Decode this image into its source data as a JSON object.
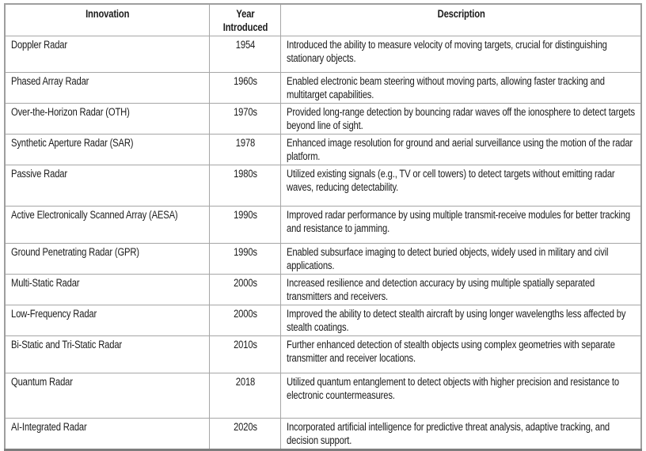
{
  "table": {
    "title_semantic": "Radar innovations timeline table",
    "header": {
      "innovation": "Innovation",
      "year_line1": "Year",
      "year_line2": "Introduced",
      "description": "Description"
    },
    "rows": [
      {
        "innovation": "Doppler Radar",
        "year": "1954",
        "description": "Introduced the ability to measure velocity of moving targets, crucial for distinguishing stationary objects."
      },
      {
        "innovation": "Phased Array Radar",
        "year": "1960s",
        "description": "Enabled electronic beam steering without moving parts, allowing faster tracking and multitarget capabilities."
      },
      {
        "innovation": "Over-the-Horizon Radar (OTH)",
        "year": "1970s",
        "description": "Provided long-range detection by bouncing radar waves off the ionosphere to detect targets beyond line of sight."
      },
      {
        "innovation": "Synthetic Aperture Radar (SAR)",
        "year": "1978",
        "description": "Enhanced image resolution for ground and aerial surveillance using the motion of the radar platform."
      },
      {
        "innovation": "Passive Radar",
        "year": "1980s",
        "description": "Utilized existing signals (e.g., TV or cell towers) to detect targets without emitting radar waves, reducing detectability."
      },
      {
        "innovation": "Active Electronically Scanned Array (AESA)",
        "year": "1990s",
        "description": "Improved radar performance by using multiple transmit-receive modules for better tracking and resistance to jamming."
      },
      {
        "innovation": "Ground Penetrating Radar (GPR)",
        "year": "1990s",
        "description": "Enabled subsurface imaging to detect buried objects, widely used in military and civil applications."
      },
      {
        "innovation": "Multi-Static Radar",
        "year": "2000s",
        "description": "Increased resilience and detection accuracy by using multiple spatially separated transmitters and receivers."
      },
      {
        "innovation": "Low-Frequency Radar",
        "year": "2000s",
        "description": "Improved the ability to detect stealth aircraft by using longer wavelengths less affected by stealth coatings."
      },
      {
        "innovation": "Bi-Static and Tri-Static Radar",
        "year": "2010s",
        "description": "Further enhanced detection of stealth objects using complex geometries with separate transmitter and receiver locations."
      },
      {
        "innovation": "Quantum Radar",
        "year": "2018",
        "description": "Utilized quantum entanglement to detect objects with higher precision and resistance to electronic countermeasures."
      },
      {
        "innovation": "AI-Integrated Radar",
        "year": "2020s",
        "description": "Incorporated artificial intelligence for predictive threat analysis, adaptive tracking, and decision support."
      }
    ],
    "colors": {
      "border_inner": "#a6a6a6",
      "border_outer": "#9e9e9e",
      "border_bottom": "#7d7d7d",
      "text": "#1c1c1c",
      "background": "#ffffff"
    }
  }
}
